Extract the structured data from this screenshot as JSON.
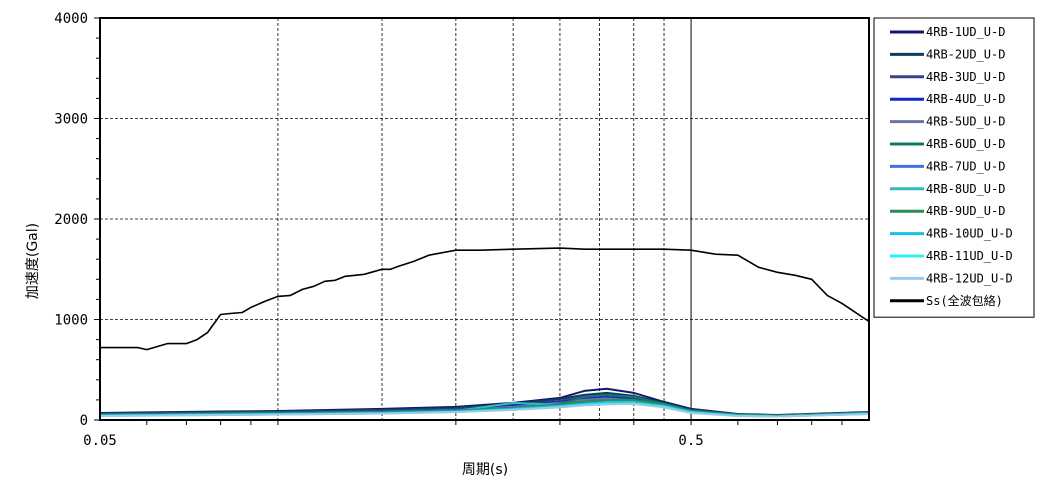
{
  "chart_data": {
    "type": "line",
    "xlabel": "周期(s)",
    "ylabel": "加速度(Gal)",
    "xscale": "log",
    "xlim": [
      0.05,
      1.0
    ],
    "ylim": [
      0,
      4000
    ],
    "x_ticks": [
      0.05,
      0.5
    ],
    "x_tick_labels": [
      "0.05",
      "0.5"
    ],
    "y_ticks": [
      0,
      1000,
      2000,
      3000,
      4000
    ],
    "y_tick_labels": [
      "0",
      "1000",
      "2000",
      "3000",
      "4000"
    ],
    "x_gridlines_dashed": [
      0.1,
      0.15,
      0.2,
      0.25,
      0.3,
      0.35,
      0.4,
      0.45
    ],
    "x_gridlines_solid": [
      0.5
    ],
    "grid": true,
    "legend_position": "right",
    "series": [
      {
        "name": "4RB-1UD_U-D",
        "color": "#10186e",
        "x": [
          0.05,
          0.08,
          0.1,
          0.15,
          0.2,
          0.25,
          0.3,
          0.33,
          0.36,
          0.4,
          0.45,
          0.5,
          0.6,
          0.7,
          1.0
        ],
        "y": [
          70,
          85,
          90,
          110,
          130,
          170,
          220,
          290,
          310,
          270,
          180,
          110,
          60,
          50,
          80
        ]
      },
      {
        "name": "4RB-2UD_U-D",
        "color": "#0c3c5c",
        "x": [
          0.05,
          0.08,
          0.1,
          0.15,
          0.2,
          0.25,
          0.3,
          0.33,
          0.36,
          0.4,
          0.45,
          0.5,
          0.6,
          0.7,
          1.0
        ],
        "y": [
          65,
          80,
          85,
          100,
          120,
          160,
          210,
          250,
          270,
          240,
          170,
          100,
          55,
          45,
          75
        ]
      },
      {
        "name": "4RB-3UD_U-D",
        "color": "#34448c",
        "x": [
          0.05,
          0.08,
          0.1,
          0.15,
          0.2,
          0.25,
          0.3,
          0.33,
          0.36,
          0.4,
          0.45,
          0.5,
          0.6,
          0.7,
          1.0
        ],
        "y": [
          60,
          75,
          80,
          95,
          110,
          150,
          190,
          230,
          250,
          220,
          160,
          95,
          55,
          45,
          75
        ]
      },
      {
        "name": "4RB-4UD_U-D",
        "color": "#1028c8",
        "x": [
          0.05,
          0.08,
          0.1,
          0.15,
          0.2,
          0.25,
          0.3,
          0.33,
          0.36,
          0.4,
          0.45,
          0.5,
          0.6,
          0.7,
          1.0
        ],
        "y": [
          55,
          70,
          75,
          90,
          105,
          140,
          180,
          210,
          230,
          205,
          150,
          90,
          50,
          40,
          70
        ]
      },
      {
        "name": "4RB-5UD_U-D",
        "color": "#6c74a4",
        "x": [
          0.05,
          0.08,
          0.1,
          0.15,
          0.2,
          0.25,
          0.3,
          0.33,
          0.36,
          0.4,
          0.45,
          0.5,
          0.6,
          0.7,
          1.0
        ],
        "y": [
          50,
          65,
          70,
          85,
          100,
          130,
          170,
          200,
          215,
          195,
          145,
          85,
          50,
          40,
          70
        ]
      },
      {
        "name": "4RB-6UD_U-D",
        "color": "#107868",
        "x": [
          0.05,
          0.08,
          0.1,
          0.15,
          0.2,
          0.25,
          0.3,
          0.33,
          0.36,
          0.4,
          0.45,
          0.5,
          0.6,
          0.7,
          1.0
        ],
        "y": [
          55,
          70,
          75,
          85,
          100,
          120,
          160,
          230,
          250,
          230,
          160,
          95,
          55,
          45,
          75
        ]
      },
      {
        "name": "4RB-7UD_U-D",
        "color": "#3c74e0",
        "x": [
          0.05,
          0.08,
          0.1,
          0.15,
          0.2,
          0.25,
          0.3,
          0.33,
          0.36,
          0.4,
          0.45,
          0.5,
          0.6,
          0.7,
          1.0
        ],
        "y": [
          50,
          60,
          65,
          80,
          95,
          120,
          150,
          175,
          190,
          180,
          140,
          85,
          50,
          40,
          70
        ]
      },
      {
        "name": "4RB-8UD_U-D",
        "color": "#30bcc0",
        "x": [
          0.05,
          0.08,
          0.1,
          0.15,
          0.2,
          0.25,
          0.3,
          0.33,
          0.36,
          0.4,
          0.45,
          0.5,
          0.6,
          0.7,
          1.0
        ],
        "y": [
          50,
          60,
          65,
          75,
          90,
          170,
          150,
          160,
          180,
          190,
          150,
          90,
          50,
          40,
          70
        ]
      },
      {
        "name": "4RB-9UD_U-D",
        "color": "#2c8c58",
        "x": [
          0.05,
          0.08,
          0.1,
          0.15,
          0.2,
          0.25,
          0.3,
          0.33,
          0.36,
          0.4,
          0.45,
          0.5,
          0.6,
          0.7,
          1.0
        ],
        "y": [
          50,
          60,
          65,
          80,
          95,
          120,
          155,
          185,
          200,
          200,
          155,
          90,
          50,
          40,
          70
        ]
      },
      {
        "name": "4RB-10UD_U-D",
        "color": "#14c4e8",
        "x": [
          0.05,
          0.08,
          0.1,
          0.15,
          0.2,
          0.25,
          0.3,
          0.33,
          0.36,
          0.4,
          0.45,
          0.5,
          0.6,
          0.7,
          1.0
        ],
        "y": [
          45,
          55,
          60,
          70,
          85,
          110,
          140,
          160,
          170,
          175,
          140,
          80,
          45,
          35,
          65
        ]
      },
      {
        "name": "4RB-11UD_U-D",
        "color": "#28f0f0",
        "x": [
          0.05,
          0.08,
          0.1,
          0.15,
          0.2,
          0.25,
          0.3,
          0.33,
          0.36,
          0.4,
          0.45,
          0.5,
          0.6,
          0.7,
          1.0
        ],
        "y": [
          40,
          50,
          55,
          65,
          80,
          100,
          130,
          150,
          160,
          165,
          130,
          75,
          40,
          35,
          60
        ]
      },
      {
        "name": "4RB-12UD_U-D",
        "color": "#9cc8ec",
        "x": [
          0.05,
          0.08,
          0.1,
          0.15,
          0.2,
          0.25,
          0.3,
          0.33,
          0.36,
          0.4,
          0.45,
          0.5,
          0.6,
          0.7,
          1.0
        ],
        "y": [
          40,
          50,
          55,
          65,
          80,
          100,
          125,
          145,
          155,
          160,
          125,
          70,
          40,
          35,
          60
        ]
      },
      {
        "name": "Ss(全波包絡)",
        "color": "#000000",
        "x": [
          0.05,
          0.058,
          0.06,
          0.065,
          0.07,
          0.073,
          0.076,
          0.08,
          0.083,
          0.087,
          0.09,
          0.095,
          0.1,
          0.105,
          0.11,
          0.115,
          0.12,
          0.125,
          0.13,
          0.135,
          0.14,
          0.15,
          0.155,
          0.16,
          0.17,
          0.18,
          0.2,
          0.22,
          0.25,
          0.3,
          0.33,
          0.35,
          0.4,
          0.45,
          0.5,
          0.55,
          0.6,
          0.65,
          0.7,
          0.75,
          0.8,
          0.85,
          0.9,
          1.0
        ],
        "y": [
          720,
          720,
          700,
          760,
          760,
          800,
          870,
          1050,
          1060,
          1070,
          1120,
          1180,
          1230,
          1240,
          1300,
          1330,
          1380,
          1390,
          1430,
          1440,
          1450,
          1500,
          1500,
          1530,
          1580,
          1640,
          1690,
          1690,
          1700,
          1710,
          1700,
          1700,
          1700,
          1700,
          1690,
          1650,
          1640,
          1520,
          1470,
          1440,
          1400,
          1240,
          1160,
          980
        ]
      }
    ]
  }
}
